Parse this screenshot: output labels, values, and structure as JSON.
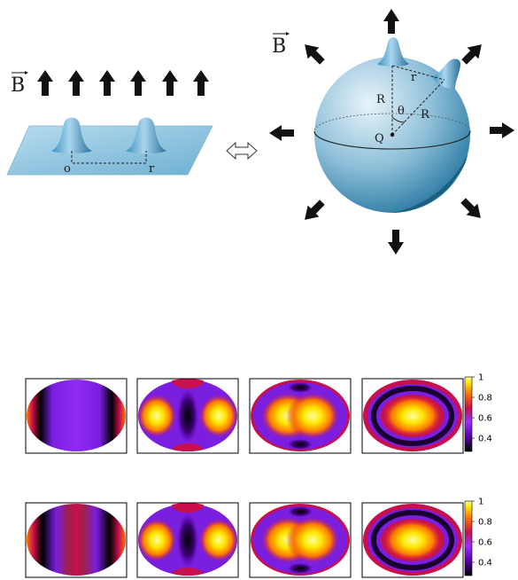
{
  "schematic": {
    "field_label": "B",
    "equivalence_symbol": "⇔",
    "plane_point_o": "o",
    "plane_point_r": "r",
    "sphere_labels": {
      "radius_1": "R",
      "radius_2": "R",
      "arc": "r",
      "angle": "θ",
      "center": "Q"
    }
  },
  "heatmap_rows": [
    {
      "panels": [
        "stripes",
        "two-lobe",
        "merged-lobe",
        "ring"
      ],
      "colorbar_ticks": [
        "1",
        "0.8",
        "0.6",
        "0.4"
      ]
    },
    {
      "panels": [
        "red-stripe",
        "two-lobe",
        "merged-lobe",
        "ring"
      ],
      "colorbar_ticks": [
        "1",
        "0.8",
        "0.6",
        "0.4"
      ]
    }
  ],
  "colors": {
    "plane": "#8fc3dd",
    "sphere": "#9cc6dc",
    "colormap": [
      "#000000",
      "#5a00b0",
      "#9c2fff",
      "#c8104c",
      "#ff7700",
      "#ffe500",
      "#ffff9a"
    ]
  }
}
